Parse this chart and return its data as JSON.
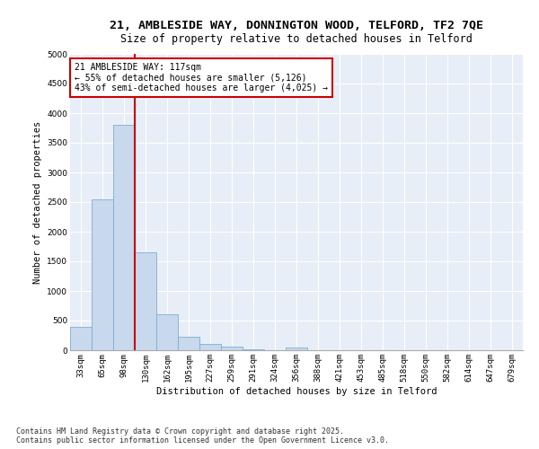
{
  "title_line1": "21, AMBLESIDE WAY, DONNINGTON WOOD, TELFORD, TF2 7QE",
  "title_line2": "Size of property relative to detached houses in Telford",
  "xlabel": "Distribution of detached houses by size in Telford",
  "ylabel": "Number of detached properties",
  "bar_color": "#c8d8ed",
  "bar_edge_color": "#7bafd4",
  "bg_color": "#e8eef7",
  "grid_color": "#ffffff",
  "fig_bg_color": "#ffffff",
  "categories": [
    "33sqm",
    "65sqm",
    "98sqm",
    "130sqm",
    "162sqm",
    "195sqm",
    "227sqm",
    "259sqm",
    "291sqm",
    "324sqm",
    "356sqm",
    "388sqm",
    "421sqm",
    "453sqm",
    "485sqm",
    "518sqm",
    "550sqm",
    "582sqm",
    "614sqm",
    "647sqm",
    "679sqm"
  ],
  "values": [
    400,
    2550,
    3800,
    1650,
    600,
    230,
    110,
    60,
    20,
    5,
    50,
    0,
    0,
    0,
    0,
    0,
    0,
    0,
    0,
    0,
    0
  ],
  "vline_color": "#cc0000",
  "vline_pos": 2.5,
  "annotation_text": "21 AMBLESIDE WAY: 117sqm\n← 55% of detached houses are smaller (5,126)\n43% of semi-detached houses are larger (4,025) →",
  "annotation_box_color": "#ffffff",
  "annotation_box_edge": "#cc0000",
  "ylim": [
    0,
    5000
  ],
  "yticks": [
    0,
    500,
    1000,
    1500,
    2000,
    2500,
    3000,
    3500,
    4000,
    4500,
    5000
  ],
  "footer_line1": "Contains HM Land Registry data © Crown copyright and database right 2025.",
  "footer_line2": "Contains public sector information licensed under the Open Government Licence v3.0.",
  "title_fontsize": 9.5,
  "subtitle_fontsize": 8.5,
  "axis_label_fontsize": 7.5,
  "tick_fontsize": 6.5,
  "annotation_fontsize": 7,
  "footer_fontsize": 6
}
